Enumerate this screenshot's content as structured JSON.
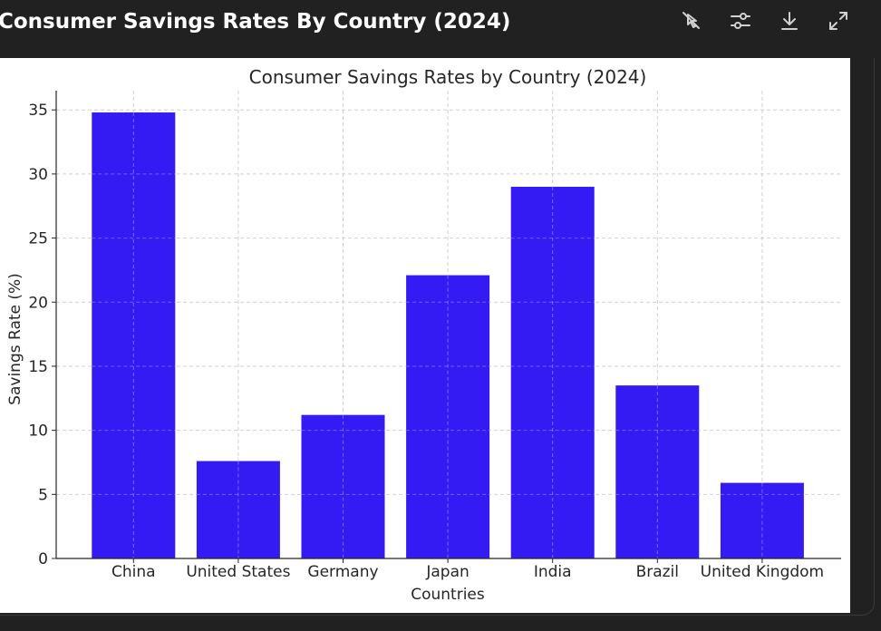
{
  "header": {
    "title": "Consumer Savings Rates By Country (2024)",
    "title_color": "#ffffff",
    "background": "#212121"
  },
  "toolbar": {
    "buttons": [
      {
        "icon": "interactive-toggle-icon"
      },
      {
        "icon": "sliders-icon"
      },
      {
        "icon": "download-icon"
      },
      {
        "icon": "expand-icon"
      }
    ]
  },
  "chart_data": {
    "type": "bar",
    "title": "Consumer Savings Rates by Country (2024)",
    "xlabel": "Countries",
    "ylabel": "Savings Rate (%)",
    "categories": [
      "China",
      "United States",
      "Germany",
      "Japan",
      "India",
      "Brazil",
      "United Kingdom"
    ],
    "values": [
      34.8,
      7.6,
      11.2,
      22.1,
      29.0,
      13.5,
      5.9
    ],
    "ylim": [
      0,
      36.5
    ],
    "yticks": [
      0,
      5,
      10,
      15,
      20,
      25,
      30,
      35
    ],
    "grid": true,
    "bar_color": "#341bf3"
  }
}
